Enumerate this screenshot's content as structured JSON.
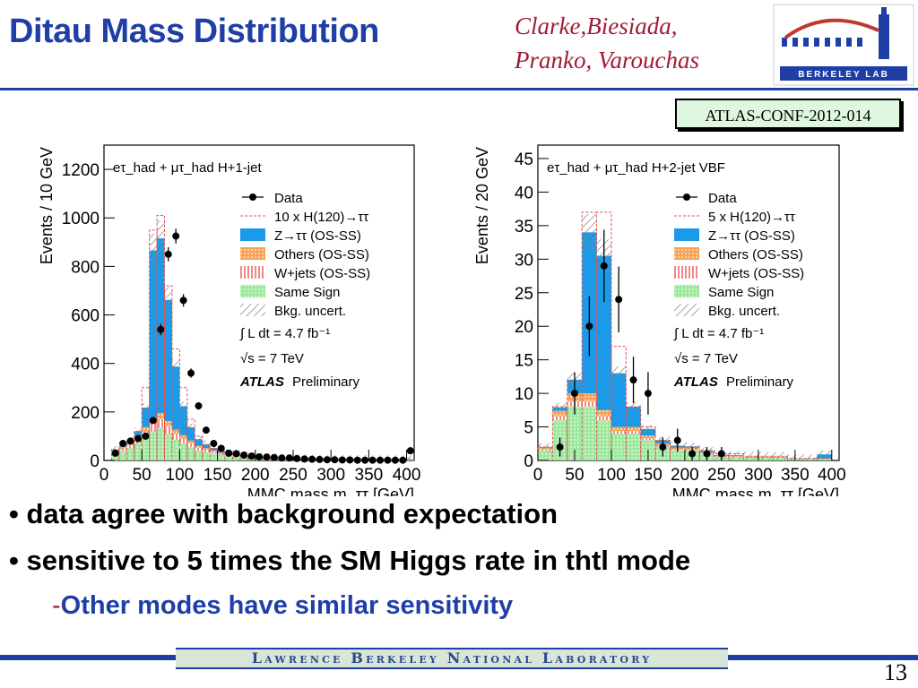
{
  "header": {
    "title": "Ditau Mass Distribution",
    "authors_line1": "Clarke,Biesiada,",
    "authors_line2": "Pranko, Varouchas",
    "logo_text": "BERKELEY LAB",
    "conf_note": "ATLAS-CONF-2012-014"
  },
  "bullets": [
    "data agree with background expectation",
    "sensitive to 5 times the SM Higgs rate in thtl mode"
  ],
  "sub_bullet": {
    "dash": "-",
    "text": "Other modes have similar sensitivity"
  },
  "footer": {
    "lab_name": "Lawrence Berkeley National Laboratory",
    "page": "13"
  },
  "colors": {
    "title_blue": "#1f3fa6",
    "author_red": "#a01b33",
    "ztautau": "#1a9ae8",
    "others": "#f5a25a",
    "wjets": "#f06a6a",
    "samesign": "#9ee89e",
    "signal": "#e05050"
  },
  "chart_data": [
    {
      "type": "bar",
      "annotation_channel": "eτ_had + μτ_had",
      "annotation_category": "H+1-jet",
      "xlabel": "MMC mass m_ττ [GeV]",
      "ylabel": "Events / 10 GeV",
      "xlim": [
        0,
        410
      ],
      "ylim": [
        0,
        1300
      ],
      "x_ticks": [
        "0",
        "50",
        "100",
        "150",
        "200",
        "250",
        "300",
        "350",
        "400"
      ],
      "y_ticks": [
        "0",
        "200",
        "400",
        "600",
        "800",
        "1000",
        "1200"
      ],
      "bin_width": 10,
      "bin_start": 10,
      "stack": {
        "samesign": [
          30,
          40,
          50,
          70,
          95,
          120,
          135,
          110,
          85,
          70,
          55,
          40,
          35,
          28,
          22,
          18,
          14,
          12,
          10,
          9,
          8,
          7,
          6,
          6,
          5,
          5,
          4,
          4,
          4,
          3,
          3,
          3,
          3,
          3,
          2,
          2,
          2,
          2,
          2,
          2
        ],
        "wjets": [
          8,
          10,
          14,
          18,
          25,
          32,
          35,
          30,
          24,
          20,
          16,
          12,
          10,
          8,
          6,
          5,
          4,
          4,
          3,
          3,
          3,
          2,
          2,
          2,
          2,
          2,
          2,
          1,
          1,
          1,
          1,
          1,
          1,
          1,
          1,
          1,
          1,
          1,
          1,
          1
        ],
        "others": [
          5,
          6,
          8,
          12,
          18,
          24,
          26,
          22,
          18,
          14,
          11,
          8,
          6,
          5,
          4,
          3,
          3,
          2,
          2,
          2,
          2,
          2,
          1,
          1,
          1,
          1,
          1,
          1,
          1,
          1,
          1,
          1,
          1,
          1,
          1,
          1,
          1,
          1,
          1,
          1
        ],
        "ztautau": [
          2,
          4,
          8,
          20,
          80,
          690,
          720,
          500,
          260,
          120,
          55,
          28,
          16,
          10,
          7,
          5,
          4,
          3,
          3,
          2,
          2,
          2,
          1,
          1,
          1,
          1,
          1,
          1,
          1,
          1,
          1,
          1,
          1,
          1,
          1,
          1,
          1,
          1,
          1,
          1
        ]
      },
      "signal_x10": [
        45,
        60,
        80,
        120,
        300,
        950,
        1010,
        720,
        460,
        300,
        170,
        100,
        64,
        50,
        36,
        30,
        25,
        20,
        17,
        15,
        14,
        12,
        10,
        10,
        9,
        9,
        8,
        7,
        7,
        6,
        6,
        6,
        6,
        6,
        5,
        5,
        5,
        5,
        5,
        5
      ],
      "data": [
        [
          15,
          30
        ],
        [
          25,
          70
        ],
        [
          35,
          80
        ],
        [
          45,
          90
        ],
        [
          55,
          100
        ],
        [
          65,
          165
        ],
        [
          75,
          540
        ],
        [
          85,
          850
        ],
        [
          95,
          925
        ],
        [
          105,
          660
        ],
        [
          115,
          360
        ],
        [
          125,
          225
        ],
        [
          135,
          125
        ],
        [
          145,
          70
        ],
        [
          155,
          50
        ],
        [
          165,
          30
        ],
        [
          175,
          28
        ],
        [
          185,
          22
        ],
        [
          195,
          18
        ],
        [
          205,
          15
        ],
        [
          215,
          14
        ],
        [
          225,
          12
        ],
        [
          235,
          10
        ],
        [
          245,
          10
        ],
        [
          255,
          8
        ],
        [
          265,
          6
        ],
        [
          275,
          5
        ],
        [
          285,
          4
        ],
        [
          295,
          3
        ],
        [
          305,
          3
        ],
        [
          315,
          2
        ],
        [
          325,
          2
        ],
        [
          335,
          1
        ],
        [
          345,
          1
        ],
        [
          355,
          1
        ],
        [
          365,
          1
        ],
        [
          375,
          1
        ],
        [
          385,
          1
        ],
        [
          395,
          1
        ],
        [
          405,
          40
        ]
      ],
      "legend": [
        "Data",
        "10 x H(120)→ττ",
        "Z→ττ (OS-SS)",
        "Others (OS-SS)",
        "W+jets (OS-SS)",
        "Same Sign",
        "Bkg. uncert."
      ],
      "lumi": "∫ L dt = 4.7 fb⁻¹",
      "energy": "√s = 7 TeV",
      "atlas": "ATLAS",
      "preliminary": "Preliminary",
      "legend_position": "top-right"
    },
    {
      "type": "bar",
      "annotation_channel": "eτ_had + μτ_had",
      "annotation_category": "H+2-jet VBF",
      "xlabel": "MMC mass m_ττ [GeV]",
      "ylabel": "Events / 20 GeV",
      "xlim": [
        0,
        410
      ],
      "ylim": [
        0,
        47
      ],
      "x_ticks": [
        "0",
        "50",
        "100",
        "150",
        "200",
        "250",
        "300",
        "350",
        "400"
      ],
      "y_ticks": [
        "0",
        "5",
        "10",
        "15",
        "20",
        "25",
        "30",
        "35",
        "40",
        "45"
      ],
      "bin_width": 20,
      "bin_start": 0,
      "stack": {
        "samesign": [
          1.5,
          6.0,
          8.0,
          8.0,
          6.0,
          4.0,
          4.0,
          3.0,
          2.0,
          1.5,
          1.5,
          1.0,
          0.5,
          0.5,
          0.5,
          0.5,
          0.5,
          0.3,
          0.3,
          0.3
        ],
        "wjets": [
          0.2,
          0.6,
          0.8,
          0.8,
          0.6,
          0.4,
          0.4,
          0.3,
          0.2,
          0.2,
          0.2,
          0.1,
          0.1,
          0.1,
          0.1,
          0.1,
          0.1,
          0.0,
          0.0,
          0.0
        ],
        "others": [
          0.2,
          0.8,
          1.2,
          1.2,
          0.9,
          0.6,
          0.6,
          0.4,
          0.3,
          0.2,
          0.2,
          0.1,
          0.1,
          0.1,
          0.1,
          0.1,
          0.1,
          0.0,
          0.0,
          0.0
        ],
        "ztautau": [
          0.1,
          0.5,
          2.0,
          24.0,
          23.0,
          8.0,
          3.0,
          1.0,
          0.5,
          0.3,
          0.2,
          0.2,
          0.1,
          0.1,
          0.0,
          0.0,
          0.0,
          0.0,
          0.0,
          0.6
        ]
      },
      "signal_x5": [
        2,
        8,
        12,
        37,
        37,
        17,
        8,
        5,
        3,
        2,
        2,
        1.5,
        1,
        1,
        0.5,
        0.5,
        0.5,
        0.3,
        0.3,
        0.3
      ],
      "data": [
        [
          30,
          2
        ],
        [
          50,
          10
        ],
        [
          70,
          20
        ],
        [
          90,
          29
        ],
        [
          110,
          24
        ],
        [
          130,
          12
        ],
        [
          150,
          10
        ],
        [
          170,
          2
        ],
        [
          190,
          3
        ],
        [
          210,
          1
        ],
        [
          230,
          1
        ],
        [
          250,
          1
        ]
      ],
      "legend": [
        "Data",
        "5 x H(120)→ττ",
        "Z→ττ (OS-SS)",
        "Others (OS-SS)",
        "W+jets (OS-SS)",
        "Same Sign",
        "Bkg. uncert."
      ],
      "lumi": "∫ L dt = 4.7 fb⁻¹",
      "energy": "√s = 7 TeV",
      "atlas": "ATLAS",
      "preliminary": "Preliminary",
      "legend_position": "top-right"
    }
  ]
}
